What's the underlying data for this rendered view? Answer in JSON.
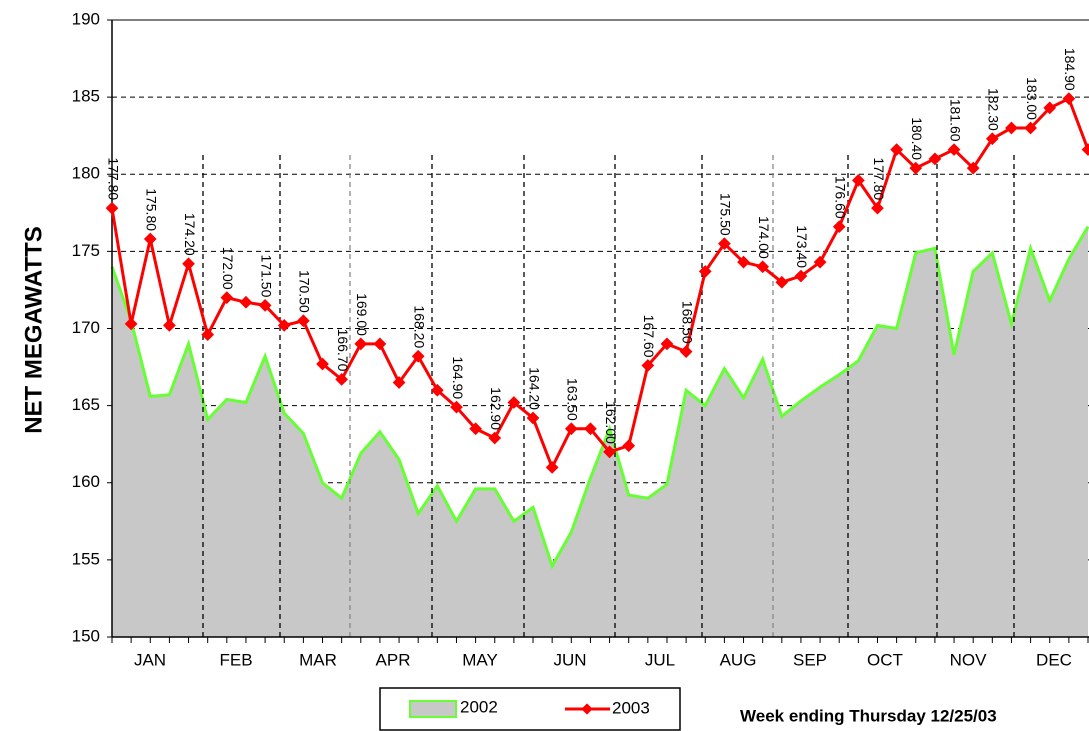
{
  "chart_data": {
    "type": "line_area",
    "y_label": "NET MEGAWATTS",
    "note": "Week ending Thursday 12/25/03",
    "months": [
      "JAN",
      "FEB",
      "MAR",
      "APR",
      "MAY",
      "JUN",
      "JUL",
      "AUG",
      "SEP",
      "OCT",
      "NOV",
      "DEC"
    ],
    "categories": [
      null,
      null,
      null,
      null,
      null,
      null,
      null,
      null,
      null,
      null,
      null,
      null,
      null,
      null,
      null,
      null,
      null,
      null,
      null,
      null,
      null,
      null,
      null,
      null,
      null,
      null,
      null,
      null,
      null,
      null,
      null,
      null,
      null,
      null,
      null,
      null,
      null,
      null,
      null,
      null,
      null,
      null,
      null,
      null,
      null,
      null,
      null,
      null,
      null,
      null,
      null,
      null
    ],
    "ylim": [
      150,
      190
    ],
    "yticks": [
      150,
      155,
      160,
      165,
      170,
      175,
      180,
      185,
      190
    ],
    "grid": true,
    "series": [
      {
        "name": "2002",
        "color": "#66ff33",
        "fill": "#c8c8c8",
        "style": "area",
        "values": [
          174.0,
          170.5,
          165.6,
          165.7,
          169.0,
          164.1,
          165.4,
          165.2,
          168.2,
          164.5,
          163.2,
          160.0,
          159.0,
          161.9,
          163.3,
          161.5,
          158.0,
          159.8,
          157.5,
          159.6,
          159.6,
          157.5,
          158.4,
          154.6,
          156.8,
          160.3,
          163.5,
          159.2,
          159.0,
          159.9,
          166.0,
          165.0,
          167.4,
          165.5,
          168.0,
          164.3,
          165.3,
          166.2,
          167.0,
          167.9,
          170.2,
          170.0,
          174.9,
          175.2,
          168.3,
          173.7,
          174.9,
          170.3,
          175.2,
          171.8,
          174.5,
          176.6
        ]
      },
      {
        "name": "2003",
        "color": "#ff0000",
        "style": "line",
        "values": [
          177.8,
          170.3,
          175.8,
          170.2,
          174.2,
          169.6,
          172.0,
          171.7,
          171.5,
          170.2,
          170.5,
          167.7,
          166.7,
          169.0,
          169.0,
          166.5,
          168.2,
          166.0,
          164.9,
          163.5,
          162.9,
          165.2,
          164.2,
          161.0,
          163.5,
          163.5,
          162.0,
          162.4,
          167.6,
          169.0,
          168.5,
          173.7,
          175.5,
          174.3,
          174.0,
          173.0,
          173.4,
          174.3,
          176.6,
          179.6,
          177.8,
          181.6,
          180.4,
          181.0,
          181.6,
          180.4,
          182.3,
          183.0,
          183.0,
          184.3,
          184.9,
          181.6
        ],
        "value_labels": [
          "177.80",
          null,
          "175.80",
          null,
          "174.20",
          null,
          "172.00",
          null,
          "171.50",
          null,
          "170.50",
          null,
          "166.70",
          "169.00",
          null,
          null,
          "168.20",
          null,
          "164.90",
          null,
          "162.90",
          null,
          "164.20",
          null,
          "163.50",
          null,
          "162.00",
          null,
          "167.60",
          null,
          "168.50",
          null,
          "175.50",
          null,
          "174.00",
          null,
          "173.40",
          null,
          "176.60",
          null,
          "177.80",
          null,
          "180.40",
          null,
          "181.60",
          null,
          "182.30",
          null,
          "183.00",
          null,
          "184.90",
          null
        ]
      }
    ]
  }
}
